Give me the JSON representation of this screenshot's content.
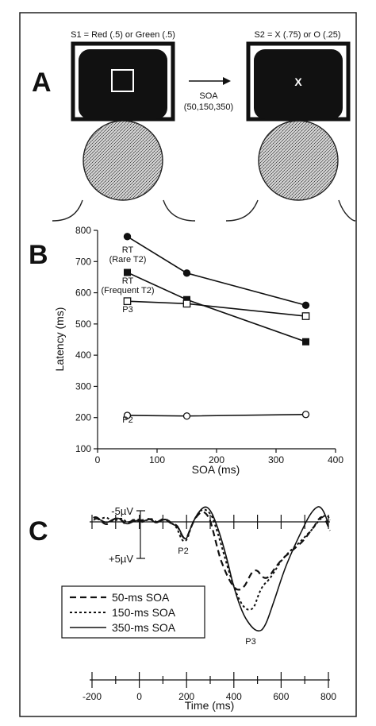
{
  "panelA": {
    "letter": "A",
    "s1_label": "S1 = Red (.5) or Green (.5)",
    "s2_label": "S2 = X (.75) or O (.25)",
    "soa_label": "SOA",
    "soa_values": "(50,150,350)",
    "s2_symbol": "X"
  },
  "panelB": {
    "letter": "B",
    "ylabel": "Latency (ms)",
    "xlabel": "SOA (ms)",
    "yticks": [
      "800",
      "700",
      "600",
      "500",
      "400",
      "300",
      "200",
      "100"
    ],
    "xticks": [
      "0",
      "100",
      "200",
      "300",
      "400"
    ],
    "labels": {
      "rt_rare_1": "RT",
      "rt_rare_2": "(Rare T2)",
      "rt_freq_1": "RT",
      "rt_freq_2": "(Frequent T2)",
      "p3": "P3",
      "p2": "P2"
    }
  },
  "chart_data": {
    "type": "line",
    "x": [
      50,
      150,
      350
    ],
    "xlabel": "SOA (ms)",
    "ylabel": "Latency (ms)",
    "xlim": [
      0,
      400
    ],
    "ylim": [
      100,
      800
    ],
    "series": [
      {
        "name": "RT (Rare T2)",
        "values": [
          780,
          663,
          560
        ],
        "marker": "filled-circle"
      },
      {
        "name": "RT (Frequent T2)",
        "values": [
          665,
          578,
          443
        ],
        "marker": "filled-square"
      },
      {
        "name": "P3",
        "values": [
          573,
          565,
          525
        ],
        "marker": "open-square"
      },
      {
        "name": "P2",
        "values": [
          207,
          205,
          210
        ],
        "marker": "open-circle"
      }
    ]
  },
  "panelC": {
    "letter": "C",
    "neg_label": "-5µV",
    "pos_label": "+5µV",
    "p2": "P2",
    "p3": "P3",
    "legend": [
      "50-ms SOA",
      "150-ms SOA",
      "350-ms SOA"
    ],
    "time_ticks": [
      "-200",
      "0",
      "200",
      "400",
      "600",
      "800"
    ],
    "time_label": "Time (ms)"
  }
}
